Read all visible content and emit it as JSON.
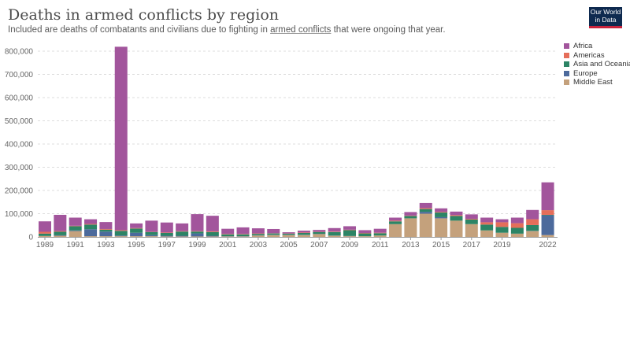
{
  "header": {
    "title": "Deaths in armed conflicts by region",
    "subtitle_pre": "Included are deaths of combatants and civilians due to fighting in ",
    "subtitle_link": "armed conflicts",
    "subtitle_post": " that were ongoing that year."
  },
  "logo": {
    "line1": "Our World",
    "line2": "in Data"
  },
  "chart_data": {
    "type": "bar",
    "stacked": true,
    "title": "Deaths in armed conflicts by region",
    "xlabel": "",
    "ylabel": "",
    "ylim": [
      0,
      800000
    ],
    "yticks": [
      0,
      100000,
      200000,
      300000,
      400000,
      500000,
      600000,
      700000,
      800000
    ],
    "ytick_labels": [
      "0",
      "100,000",
      "200,000",
      "300,000",
      "400,000",
      "500,000",
      "600,000",
      "700,000",
      "800,000"
    ],
    "grid": true,
    "legend_position": "right",
    "x_tick_labels": [
      "1989",
      "1991",
      "1993",
      "1995",
      "1997",
      "1999",
      "2001",
      "2003",
      "2005",
      "2007",
      "2009",
      "2011",
      "2013",
      "2015",
      "2017",
      "2019",
      "2022"
    ],
    "categories": [
      "1989",
      "1990",
      "1991",
      "1992",
      "1993",
      "1994",
      "1995",
      "1996",
      "1997",
      "1998",
      "1999",
      "2000",
      "2001",
      "2002",
      "2003",
      "2004",
      "2005",
      "2006",
      "2007",
      "2008",
      "2009",
      "2010",
      "2011",
      "2012",
      "2013",
      "2014",
      "2015",
      "2016",
      "2017",
      "2018",
      "2019",
      "2020",
      "2021",
      "2022"
    ],
    "series": [
      {
        "name": "Middle East",
        "color": "#c4a17c",
        "values": [
          4000,
          5000,
          25000,
          3000,
          3000,
          3000,
          3000,
          3000,
          2000,
          2000,
          2000,
          2000,
          2000,
          2000,
          6000,
          8000,
          8000,
          8000,
          12000,
          5000,
          3000,
          3000,
          6000,
          55000,
          80000,
          100000,
          80000,
          70000,
          55000,
          28000,
          18000,
          14000,
          25000,
          8000
        ]
      },
      {
        "name": "Europe",
        "color": "#4c6a9c",
        "values": [
          0,
          2000,
          3000,
          30000,
          20000,
          3000,
          15000,
          5000,
          3000,
          3000,
          13000,
          3000,
          1000,
          1000,
          1000,
          1000,
          1000,
          1000,
          1000,
          1000,
          1000,
          0,
          0,
          0,
          0,
          8000,
          5000,
          0,
          0,
          0,
          0,
          0,
          1000,
          85000
        ]
      },
      {
        "name": "Asia and Oceania",
        "color": "#2c8465",
        "values": [
          10000,
          15000,
          18000,
          20000,
          8000,
          20000,
          18000,
          13000,
          12000,
          18000,
          8000,
          16000,
          8000,
          8000,
          6000,
          6000,
          5000,
          8000,
          8000,
          15000,
          25000,
          12000,
          10000,
          12000,
          10000,
          12000,
          20000,
          20000,
          20000,
          25000,
          25000,
          25000,
          25000,
          2000
        ]
      },
      {
        "name": "Americas",
        "color": "#e56e5a",
        "values": [
          8000,
          3000,
          2000,
          3000,
          3000,
          3000,
          2000,
          1000,
          2000,
          2000,
          2000,
          3000,
          2000,
          2000,
          2000,
          1000,
          1000,
          2000,
          1000,
          2000,
          2000,
          2000,
          2000,
          3000,
          2000,
          4000,
          3000,
          4000,
          3000,
          10000,
          20000,
          20000,
          25000,
          20000
        ]
      },
      {
        "name": "Africa",
        "color": "#a2559c",
        "values": [
          45000,
          70000,
          35000,
          20000,
          30000,
          790000,
          20000,
          48000,
          43000,
          33000,
          73000,
          67000,
          22000,
          28000,
          22000,
          18000,
          5000,
          8000,
          8000,
          15000,
          15000,
          12000,
          17000,
          13000,
          15000,
          22000,
          15000,
          15000,
          19000,
          20000,
          13000,
          24000,
          40000,
          120000
        ]
      }
    ],
    "legend_order": [
      "Africa",
      "Americas",
      "Asia and Oceania",
      "Europe",
      "Middle East"
    ]
  }
}
